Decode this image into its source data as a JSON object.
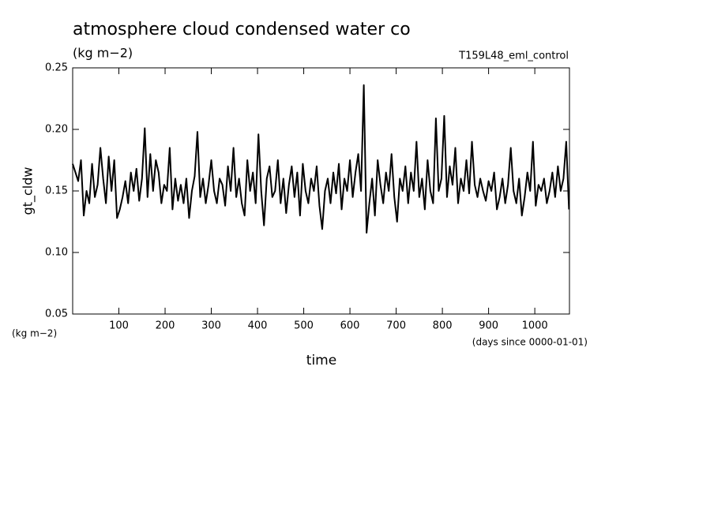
{
  "chart_data": {
    "type": "line",
    "title": "atmosphere cloud condensed water co",
    "subtitle": "(kg m−2)",
    "annotation": "T159L48_eml_control",
    "y_label": "gt_cldw",
    "y_unit": "(kg m−2)",
    "x_label": "time",
    "x_unit": "(days since 0000-01-01)",
    "color": "#000000",
    "xlim": [
      0,
      1075
    ],
    "ylim": [
      0.05,
      0.25
    ],
    "xticks": [
      100,
      200,
      300,
      400,
      500,
      600,
      700,
      800,
      900,
      1000
    ],
    "yticks": [
      {
        "value": 0.05,
        "label": "0.05"
      },
      {
        "value": 0.1,
        "label": "0.10"
      },
      {
        "value": 0.15,
        "label": "0.15"
      },
      {
        "value": 0.2,
        "label": "0.20"
      },
      {
        "value": 0.25,
        "label": "0.25"
      }
    ],
    "x": [
      0,
      6,
      12,
      18,
      24,
      30,
      36,
      42,
      48,
      54,
      60,
      66,
      72,
      78,
      84,
      90,
      96,
      102,
      108,
      114,
      120,
      126,
      132,
      138,
      144,
      150,
      156,
      162,
      168,
      174,
      180,
      186,
      192,
      198,
      204,
      210,
      216,
      222,
      228,
      234,
      240,
      246,
      252,
      258,
      264,
      270,
      276,
      282,
      288,
      294,
      300,
      306,
      312,
      318,
      324,
      330,
      336,
      342,
      348,
      354,
      360,
      366,
      372,
      378,
      384,
      390,
      396,
      402,
      408,
      414,
      420,
      426,
      432,
      438,
      444,
      450,
      456,
      462,
      468,
      474,
      480,
      486,
      492,
      498,
      504,
      510,
      516,
      522,
      528,
      534,
      540,
      546,
      552,
      558,
      564,
      570,
      576,
      582,
      588,
      594,
      600,
      606,
      612,
      618,
      624,
      630,
      636,
      642,
      648,
      654,
      660,
      666,
      672,
      678,
      684,
      690,
      696,
      702,
      708,
      714,
      720,
      726,
      732,
      738,
      744,
      750,
      756,
      762,
      768,
      774,
      780,
      786,
      792,
      798,
      804,
      810,
      816,
      822,
      828,
      834,
      840,
      846,
      852,
      858,
      864,
      870,
      876,
      882,
      888,
      894,
      900,
      906,
      912,
      918,
      924,
      930,
      936,
      942,
      948,
      954,
      960,
      966,
      972,
      978,
      984,
      990,
      996,
      1002,
      1008,
      1014,
      1020,
      1026,
      1032,
      1038,
      1044,
      1050,
      1056,
      1062,
      1068,
      1074
    ],
    "values": [
      0.172,
      0.165,
      0.158,
      0.175,
      0.13,
      0.15,
      0.14,
      0.172,
      0.145,
      0.155,
      0.185,
      0.16,
      0.14,
      0.178,
      0.15,
      0.175,
      0.128,
      0.135,
      0.145,
      0.158,
      0.14,
      0.165,
      0.15,
      0.168,
      0.142,
      0.16,
      0.201,
      0.145,
      0.18,
      0.15,
      0.175,
      0.165,
      0.14,
      0.155,
      0.15,
      0.185,
      0.135,
      0.16,
      0.142,
      0.155,
      0.14,
      0.16,
      0.128,
      0.15,
      0.162,
      0.198,
      0.145,
      0.16,
      0.14,
      0.155,
      0.175,
      0.15,
      0.14,
      0.16,
      0.155,
      0.138,
      0.17,
      0.15,
      0.185,
      0.145,
      0.16,
      0.14,
      0.13,
      0.175,
      0.15,
      0.165,
      0.14,
      0.196,
      0.15,
      0.122,
      0.16,
      0.17,
      0.145,
      0.15,
      0.175,
      0.14,
      0.16,
      0.132,
      0.155,
      0.17,
      0.145,
      0.165,
      0.13,
      0.172,
      0.15,
      0.14,
      0.16,
      0.15,
      0.17,
      0.138,
      0.119,
      0.15,
      0.16,
      0.14,
      0.165,
      0.148,
      0.172,
      0.135,
      0.16,
      0.15,
      0.175,
      0.145,
      0.165,
      0.18,
      0.15,
      0.236,
      0.116,
      0.14,
      0.16,
      0.13,
      0.175,
      0.155,
      0.14,
      0.165,
      0.15,
      0.18,
      0.145,
      0.125,
      0.16,
      0.15,
      0.17,
      0.14,
      0.165,
      0.15,
      0.19,
      0.145,
      0.16,
      0.135,
      0.175,
      0.15,
      0.14,
      0.209,
      0.15,
      0.16,
      0.211,
      0.145,
      0.17,
      0.155,
      0.185,
      0.14,
      0.16,
      0.15,
      0.175,
      0.148,
      0.19,
      0.155,
      0.145,
      0.16,
      0.15,
      0.142,
      0.158,
      0.15,
      0.165,
      0.135,
      0.145,
      0.16,
      0.14,
      0.155,
      0.185,
      0.15,
      0.14,
      0.16,
      0.13,
      0.145,
      0.165,
      0.15,
      0.19,
      0.138,
      0.155,
      0.15,
      0.16,
      0.14,
      0.15,
      0.165,
      0.145,
      0.17,
      0.15,
      0.16,
      0.19,
      0.135
    ]
  }
}
